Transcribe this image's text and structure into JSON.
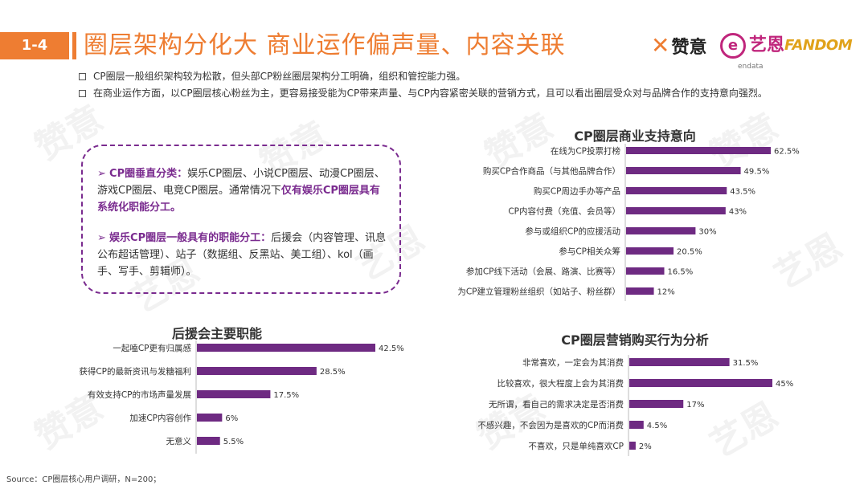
{
  "header": {
    "section_number": "1-4",
    "title": "圈层架构分化大 商业运作偏声量、内容关联",
    "logos": {
      "zanyi": "赞意",
      "yien": "艺恩",
      "yien_sub": "endata",
      "fandom": "FANDOM"
    }
  },
  "watermarks": [
    "赞意",
    "艺恩"
  ],
  "bullets": [
    "CP圈层一般组织架构较为松散，但头部CP粉丝圈层架构分工明确，组织和管控能力强。",
    "在商业运作方面，以CP圈层核心粉丝为主，更容易接受能为CP带来声量、与CP内容紧密关联的营销方式，且可以看出圈层受众对与品牌合作的支持意向强烈。"
  ],
  "callout": {
    "p1_arrow": "➢",
    "p1_label": "CP圈垂直分类：",
    "p1_text": "娱乐CP圈层、小说CP圈层、动漫CP圈层、游戏CP圈层、电竞CP圈层。通常情况下",
    "p1_highlight": "仅有娱乐CP圈层具有系统化职能分工。",
    "p2_arrow": "➢",
    "p2_label": "娱乐CP圈层一般具有的职能分工：",
    "p2_text": "后援会（内容管理、讯息公布超话管理）、站子（数据组、反黑站、美工组）、kol（画手、写手、剪辑师）。"
  },
  "colors": {
    "accent": "#ee7d32",
    "bar": "#6e2a82",
    "callout_border": "#7a2b8f"
  },
  "source": "Source：CP圈层核心用户调研，N=200；",
  "chart_data": [
    {
      "type": "bar",
      "orientation": "horizontal",
      "title": "CP圈层商业支持意向",
      "categories": [
        "在线为CP投票打榜",
        "购买CP合作商品（与其他品牌合作）",
        "购买CP周边手办等产品",
        "CP内容付费（充值、会员等）",
        "参与或组织CP的应援活动",
        "参与CP相关众筹",
        "参加CP线下活动（会展、路演、比赛等）",
        "为CP建立管理粉丝组织（如站子、粉丝群）"
      ],
      "values": [
        62.5,
        49.5,
        43.5,
        43,
        30,
        20.5,
        16.5,
        12
      ],
      "labels": [
        "62.5%",
        "49.5%",
        "43.5%",
        "43%",
        "30%",
        "20.5%",
        "16.5%",
        "12%"
      ],
      "xlim": [
        0,
        62.5
      ]
    },
    {
      "type": "bar",
      "orientation": "horizontal",
      "title": "后援会主要职能",
      "categories": [
        "一起嗑CP更有归属感",
        "获得CP的最新资讯与发糖福利",
        "有效支持CP的市场声量发展",
        "加速CP内容创作",
        "无意义"
      ],
      "values": [
        42.5,
        28.5,
        17.5,
        6,
        5.5
      ],
      "labels": [
        "42.5%",
        "28.5%",
        "17.5%",
        "6%",
        "5.5%"
      ],
      "xlim": [
        0,
        42.5
      ]
    },
    {
      "type": "bar",
      "orientation": "horizontal",
      "title": "CP圈层营销购买行为分析",
      "categories": [
        "非常喜欢，一定会为其消费",
        "比较喜欢，很大程度上会为其消费",
        "无所谓，看自己的需求决定是否消费",
        "不感兴趣，不会因为是喜欢的CP而消费",
        "不喜欢，只是单纯喜欢CP"
      ],
      "values": [
        31.5,
        45,
        17,
        4.5,
        2
      ],
      "labels": [
        "31.5%",
        "45%",
        "17%",
        "4.5%",
        "2%"
      ],
      "xlim": [
        0,
        45
      ]
    }
  ]
}
